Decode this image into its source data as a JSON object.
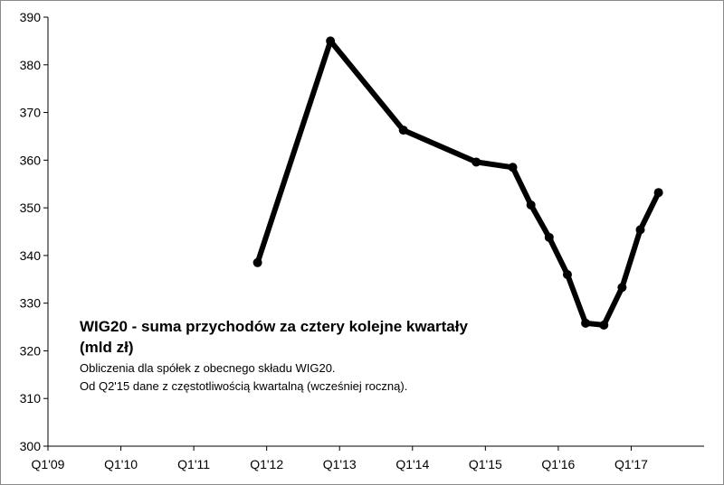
{
  "chart_data": {
    "type": "line",
    "title": "",
    "xlabel": "",
    "ylabel": "",
    "ylim": [
      300,
      390
    ],
    "y_ticks": [
      300,
      310,
      320,
      330,
      340,
      350,
      360,
      370,
      380,
      390
    ],
    "x_ticks": [
      "Q1'09",
      "Q1'10",
      "Q1'11",
      "Q1'12",
      "Q1'13",
      "Q1'14",
      "Q1'15",
      "Q1'16",
      "Q1'17"
    ],
    "grid": false,
    "legend": "none",
    "series": [
      {
        "color": "#000000",
        "points": [
          {
            "x": "Q4'11",
            "y": 338.5
          },
          {
            "x": "Q4'12",
            "y": 385.0
          },
          {
            "x": "Q4'13",
            "y": 366.3
          },
          {
            "x": "Q4'14",
            "y": 359.6
          },
          {
            "x": "Q2'15",
            "y": 358.5
          },
          {
            "x": "Q3'15",
            "y": 350.6
          },
          {
            "x": "Q4'15",
            "y": 343.8
          },
          {
            "x": "Q1'16",
            "y": 336.0
          },
          {
            "x": "Q2'16",
            "y": 325.8
          },
          {
            "x": "Q3'16",
            "y": 325.4
          },
          {
            "x": "Q4'16",
            "y": 333.3
          },
          {
            "x": "Q1'17",
            "y": 345.4
          },
          {
            "x": "Q2'17",
            "y": 353.2
          }
        ]
      }
    ],
    "annotations": {
      "title_line1": "WIG20 - suma przychodów za cztery kolejne kwartały",
      "title_line2": "(mld zł)",
      "note_line1": "Obliczenia dla spółek z obecnego składu WIG20.",
      "note_line2": "Od Q2'15 dane z częstotliwością kwartalną (wcześniej roczną)."
    }
  }
}
